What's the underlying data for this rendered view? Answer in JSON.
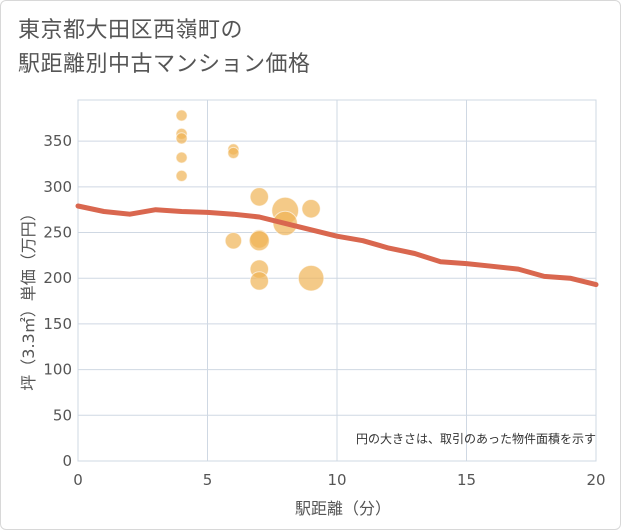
{
  "title_line1": "東京都大田区西嶺町の",
  "title_line2": "駅距離別中古マンション価格",
  "chart_data": {
    "type": "scatter",
    "title": "東京都大田区西嶺町の駅距離別中古マンション価格",
    "xlabel": "駅距離（分）",
    "ylabel": "坪（3.3㎡）単価（万円）",
    "xlim": [
      0,
      20
    ],
    "ylim": [
      0,
      395
    ],
    "xticks": [
      0,
      5,
      10,
      15,
      20
    ],
    "yticks": [
      0,
      50,
      100,
      150,
      200,
      250,
      300,
      350
    ],
    "grid": true,
    "note": "円の大きさは、取引のあった物件面積を示す",
    "colors": {
      "bubble": "#f0b456",
      "trend": "#d9674f"
    },
    "scatter": [
      {
        "x": 4,
        "y": 378,
        "size": 1
      },
      {
        "x": 4,
        "y": 358,
        "size": 1
      },
      {
        "x": 4,
        "y": 353,
        "size": 1
      },
      {
        "x": 4,
        "y": 332,
        "size": 1
      },
      {
        "x": 4,
        "y": 312,
        "size": 1
      },
      {
        "x": 6,
        "y": 341,
        "size": 1
      },
      {
        "x": 6,
        "y": 337,
        "size": 1
      },
      {
        "x": 6,
        "y": 241,
        "size": 3
      },
      {
        "x": 7,
        "y": 289,
        "size": 4
      },
      {
        "x": 7,
        "y": 243,
        "size": 4
      },
      {
        "x": 7,
        "y": 241,
        "size": 5
      },
      {
        "x": 7,
        "y": 210,
        "size": 4
      },
      {
        "x": 7,
        "y": 197,
        "size": 4
      },
      {
        "x": 8,
        "y": 274,
        "size": 10
      },
      {
        "x": 8,
        "y": 260,
        "size": 8
      },
      {
        "x": 9,
        "y": 276,
        "size": 4
      },
      {
        "x": 9,
        "y": 200,
        "size": 9
      }
    ],
    "trend": {
      "name": "trend",
      "x": [
        0,
        1,
        2,
        3,
        4,
        5,
        6,
        7,
        8,
        9,
        10,
        11,
        12,
        13,
        14,
        15,
        16,
        17,
        18,
        19,
        20
      ],
      "y": [
        279,
        273,
        270,
        275,
        273,
        272,
        270,
        267,
        260,
        253,
        246,
        241,
        233,
        227,
        218,
        216,
        213,
        210,
        202,
        200,
        193
      ]
    }
  }
}
